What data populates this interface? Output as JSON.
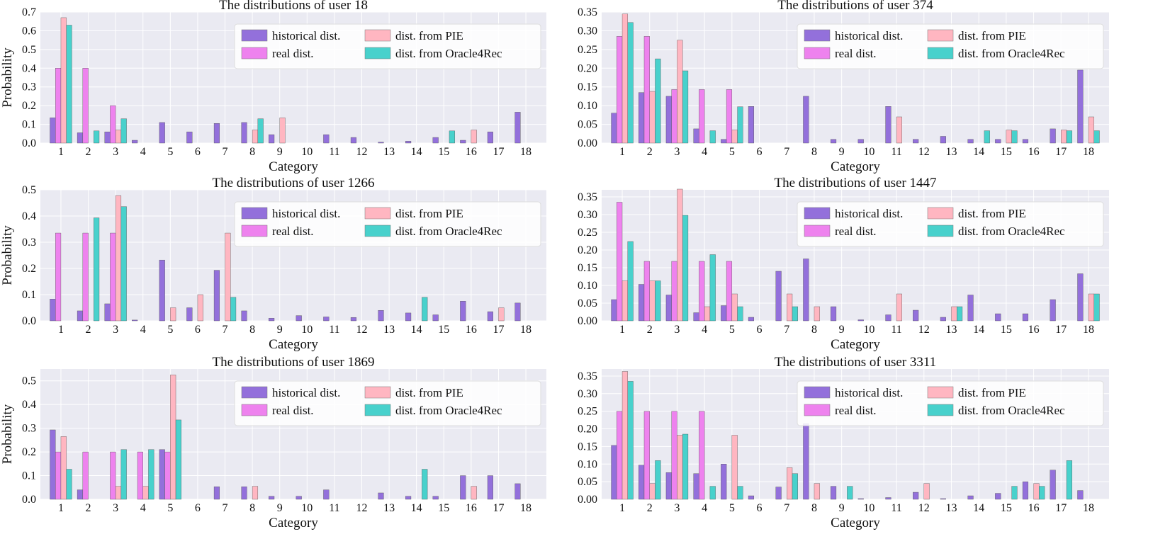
{
  "colors": {
    "background": "#eaeaf2",
    "grid": "#ffffff",
    "historical": "#9370db",
    "real": "#ee82ee",
    "pie": "#ffb6c1",
    "oracle": "#48d1cc"
  },
  "legend": {
    "labels": [
      "historical dist.",
      "dist. from PIE",
      "real dist.",
      "dist. from Oracle4Rec"
    ],
    "placement": "top-right"
  },
  "chart_data": [
    {
      "type": "bar",
      "title": "The distributions of user 18",
      "xlabel": "Category",
      "ylabel": "Probability",
      "categories": [
        "1",
        "2",
        "3",
        "4",
        "5",
        "6",
        "7",
        "8",
        "9",
        "10",
        "11",
        "12",
        "13",
        "14",
        "15",
        "16",
        "17",
        "18"
      ],
      "ylim": [
        0,
        0.7
      ],
      "yticks": [
        0.0,
        0.1,
        0.2,
        0.3,
        0.4,
        0.5,
        0.6,
        0.7
      ],
      "ytick_labels": [
        "0.0",
        "0.1",
        "0.2",
        "0.3",
        "0.4",
        "0.5",
        "0.6",
        "0.7"
      ],
      "series": [
        {
          "name": "historical dist.",
          "values": [
            0.135,
            0.055,
            0.06,
            0.015,
            0.11,
            0.06,
            0.105,
            0.11,
            0.045,
            0,
            0.045,
            0.03,
            0.005,
            0.01,
            0.03,
            0.015,
            0.06,
            0.165
          ]
        },
        {
          "name": "real dist.",
          "values": [
            0.4,
            0.4,
            0.2,
            0,
            0,
            0,
            0,
            0,
            0,
            0,
            0,
            0,
            0,
            0,
            0,
            0,
            0,
            0
          ]
        },
        {
          "name": "dist. from PIE",
          "values": [
            0.67,
            0,
            0.07,
            0,
            0,
            0,
            0,
            0.07,
            0.135,
            0,
            0,
            0,
            0,
            0,
            0,
            0.07,
            0,
            0
          ]
        },
        {
          "name": "dist. from Oracle4Rec",
          "values": [
            0.63,
            0.065,
            0.13,
            0,
            0,
            0,
            0,
            0.13,
            0,
            0,
            0,
            0,
            0,
            0,
            0.065,
            0,
            0,
            0
          ]
        }
      ]
    },
    {
      "type": "bar",
      "title": "The distributions of user 374",
      "xlabel": "Category",
      "ylabel": "",
      "categories": [
        "1",
        "2",
        "3",
        "4",
        "5",
        "6",
        "7",
        "8",
        "9",
        "10",
        "11",
        "12",
        "13",
        "14",
        "15",
        "16",
        "17",
        "18"
      ],
      "ylim": [
        0,
        0.35
      ],
      "yticks": [
        0.0,
        0.05,
        0.1,
        0.15,
        0.2,
        0.25,
        0.3,
        0.35
      ],
      "ytick_labels": [
        "0.00",
        "0.05",
        "0.10",
        "0.15",
        "0.20",
        "0.25",
        "0.30",
        "0.35"
      ],
      "series": [
        {
          "name": "historical dist.",
          "values": [
            0.08,
            0.135,
            0.125,
            0.038,
            0.01,
            0.098,
            0,
            0.125,
            0.01,
            0.01,
            0.098,
            0.01,
            0.018,
            0.01,
            0.01,
            0.01,
            0.038,
            0.195
          ]
        },
        {
          "name": "real dist.",
          "values": [
            0.285,
            0.285,
            0.143,
            0.143,
            0.143,
            0,
            0,
            0,
            0,
            0,
            0,
            0,
            0,
            0,
            0,
            0,
            0,
            0
          ]
        },
        {
          "name": "dist. from PIE",
          "values": [
            0.345,
            0.138,
            0.275,
            0,
            0.035,
            0,
            0,
            0,
            0,
            0,
            0.07,
            0,
            0,
            0,
            0.035,
            0,
            0.035,
            0.07
          ]
        },
        {
          "name": "dist. from Oracle4Rec",
          "values": [
            0.322,
            0.225,
            0.193,
            0.033,
            0.097,
            0,
            0,
            0,
            0,
            0,
            0,
            0,
            0,
            0.033,
            0.033,
            0,
            0.033,
            0.033
          ]
        }
      ]
    },
    {
      "type": "bar",
      "title": "The distributions of user 1266",
      "xlabel": "Category",
      "ylabel": "Probability",
      "categories": [
        "1",
        "2",
        "3",
        "4",
        "5",
        "6",
        "7",
        "8",
        "9",
        "10",
        "11",
        "12",
        "13",
        "14",
        "15",
        "16",
        "17",
        "18"
      ],
      "ylim": [
        0,
        0.5
      ],
      "yticks": [
        0.0,
        0.1,
        0.2,
        0.3,
        0.4,
        0.5
      ],
      "ytick_labels": [
        "0.0",
        "0.1",
        "0.2",
        "0.3",
        "0.4",
        "0.5"
      ],
      "series": [
        {
          "name": "historical dist.",
          "values": [
            0.083,
            0.038,
            0.065,
            0.003,
            0.232,
            0.05,
            0.193,
            0.038,
            0.01,
            0.02,
            0.015,
            0.013,
            0.04,
            0.03,
            0.023,
            0.075,
            0.035,
            0.068
          ]
        },
        {
          "name": "real dist.",
          "values": [
            0.335,
            0.335,
            0.335,
            0,
            0,
            0,
            0,
            0,
            0,
            0,
            0,
            0,
            0,
            0,
            0,
            0,
            0,
            0
          ]
        },
        {
          "name": "dist. from PIE",
          "values": [
            0,
            0,
            0.478,
            0,
            0.05,
            0.1,
            0.335,
            0,
            0,
            0,
            0,
            0,
            0,
            0,
            0,
            0,
            0.05,
            0
          ]
        },
        {
          "name": "dist. from Oracle4Rec",
          "values": [
            0,
            0.393,
            0.436,
            0,
            0,
            0,
            0.09,
            0,
            0,
            0,
            0,
            0,
            0,
            0.09,
            0,
            0,
            0,
            0
          ]
        }
      ]
    },
    {
      "type": "bar",
      "title": "The distributions of user 1447",
      "xlabel": "Category",
      "ylabel": "",
      "categories": [
        "1",
        "2",
        "3",
        "4",
        "5",
        "6",
        "7",
        "8",
        "9",
        "10",
        "11",
        "12",
        "13",
        "14",
        "15",
        "16",
        "17",
        "18"
      ],
      "ylim": [
        0,
        0.37
      ],
      "yticks": [
        0.0,
        0.05,
        0.1,
        0.15,
        0.2,
        0.25,
        0.3,
        0.35
      ],
      "ytick_labels": [
        "0.00",
        "0.05",
        "0.10",
        "0.15",
        "0.20",
        "0.25",
        "0.30",
        "0.35"
      ],
      "series": [
        {
          "name": "historical dist.",
          "values": [
            0.06,
            0.103,
            0.073,
            0.023,
            0.043,
            0.01,
            0.14,
            0.175,
            0.04,
            0.003,
            0.017,
            0.03,
            0.01,
            0.073,
            0.02,
            0.02,
            0.06,
            0.133
          ]
        },
        {
          "name": "real dist.",
          "values": [
            0.335,
            0.168,
            0.168,
            0.168,
            0.168,
            0,
            0,
            0,
            0,
            0,
            0,
            0,
            0,
            0,
            0,
            0,
            0,
            0
          ]
        },
        {
          "name": "dist. from PIE",
          "values": [
            0.113,
            0.113,
            0.372,
            0.04,
            0.076,
            0,
            0.076,
            0.04,
            0,
            0,
            0.076,
            0,
            0.04,
            0,
            0,
            0,
            0,
            0.076
          ]
        },
        {
          "name": "dist. from Oracle4Rec",
          "values": [
            0.224,
            0.113,
            0.298,
            0.187,
            0.04,
            0,
            0.04,
            0,
            0,
            0,
            0,
            0,
            0.04,
            0,
            0,
            0,
            0,
            0.076
          ]
        }
      ]
    },
    {
      "type": "bar",
      "title": "The distributions of user 1869",
      "xlabel": "Category",
      "ylabel": "Probability",
      "categories": [
        "1",
        "2",
        "3",
        "4",
        "5",
        "6",
        "7",
        "8",
        "9",
        "10",
        "11",
        "12",
        "13",
        "14",
        "15",
        "16",
        "17",
        "18"
      ],
      "ylim": [
        0,
        0.55
      ],
      "yticks": [
        0.0,
        0.1,
        0.2,
        0.3,
        0.4,
        0.5
      ],
      "ytick_labels": [
        "0.0",
        "0.1",
        "0.2",
        "0.3",
        "0.4",
        "0.5"
      ],
      "series": [
        {
          "name": "historical dist.",
          "values": [
            0.293,
            0.04,
            0,
            0,
            0.21,
            0,
            0.053,
            0.053,
            0.013,
            0.013,
            0.04,
            0,
            0.027,
            0.013,
            0.013,
            0.1,
            0.1,
            0.066
          ]
        },
        {
          "name": "real dist.",
          "values": [
            0.2,
            0.2,
            0.2,
            0.2,
            0.2,
            0,
            0,
            0,
            0,
            0,
            0,
            0,
            0,
            0,
            0,
            0,
            0,
            0
          ]
        },
        {
          "name": "dist. from PIE",
          "values": [
            0.265,
            0,
            0.055,
            0.055,
            0.525,
            0,
            0,
            0.055,
            0,
            0,
            0,
            0,
            0,
            0,
            0,
            0.055,
            0,
            0
          ]
        },
        {
          "name": "dist. from Oracle4Rec",
          "values": [
            0.127,
            0,
            0.21,
            0.21,
            0.335,
            0,
            0,
            0,
            0,
            0,
            0,
            0,
            0,
            0.127,
            0,
            0,
            0,
            0
          ]
        }
      ]
    },
    {
      "type": "bar",
      "title": "The distributions of user 3311",
      "xlabel": "Category",
      "ylabel": "",
      "categories": [
        "1",
        "2",
        "3",
        "4",
        "5",
        "6",
        "7",
        "8",
        "9",
        "10",
        "11",
        "12",
        "13",
        "14",
        "15",
        "16",
        "17",
        "18"
      ],
      "ylim": [
        0,
        0.37
      ],
      "yticks": [
        0.0,
        0.05,
        0.1,
        0.15,
        0.2,
        0.25,
        0.3,
        0.35
      ],
      "ytick_labels": [
        "0.00",
        "0.05",
        "0.10",
        "0.15",
        "0.20",
        "0.25",
        "0.30",
        "0.35"
      ],
      "series": [
        {
          "name": "historical dist.",
          "values": [
            0.153,
            0.097,
            0.076,
            0.073,
            0.1,
            0.01,
            0.035,
            0.215,
            0.037,
            0.002,
            0.005,
            0.02,
            0.002,
            0.01,
            0.017,
            0.05,
            0.083,
            0.025
          ]
        },
        {
          "name": "real dist.",
          "values": [
            0.25,
            0.25,
            0.25,
            0.25,
            0,
            0,
            0,
            0,
            0,
            0,
            0,
            0,
            0,
            0,
            0,
            0,
            0,
            0
          ]
        },
        {
          "name": "dist. from PIE",
          "values": [
            0.363,
            0.045,
            0.182,
            0,
            0.182,
            0,
            0.09,
            0.045,
            0,
            0,
            0,
            0.045,
            0,
            0,
            0,
            0.045,
            0,
            0
          ]
        },
        {
          "name": "dist. from Oracle4Rec",
          "values": [
            0.335,
            0.11,
            0.185,
            0.037,
            0.037,
            0,
            0.073,
            0,
            0.037,
            0,
            0,
            0,
            0,
            0,
            0.037,
            0.037,
            0.11,
            0
          ]
        }
      ]
    }
  ]
}
